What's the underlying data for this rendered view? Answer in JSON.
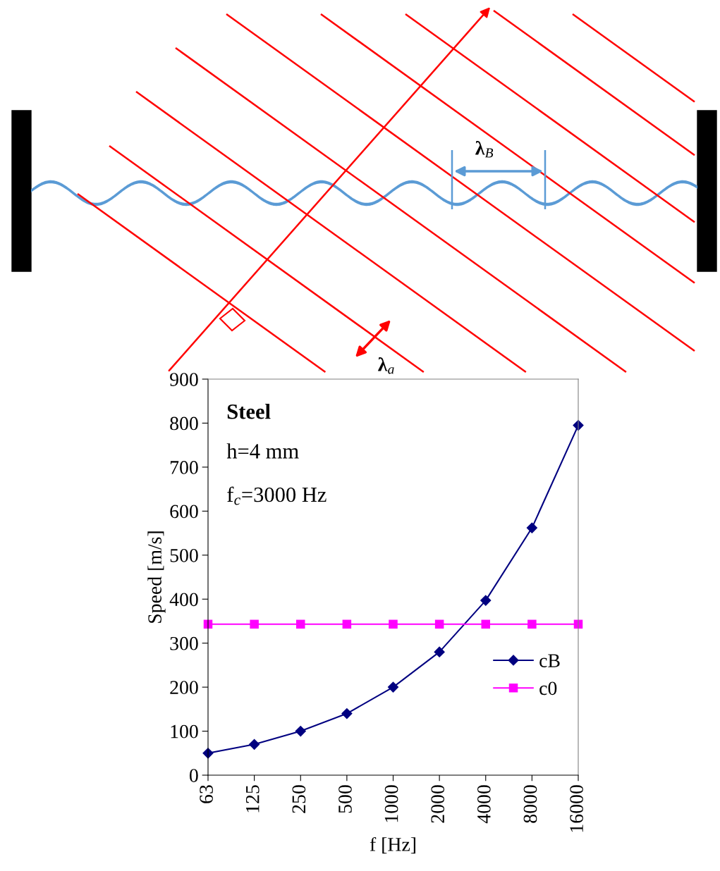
{
  "chart_data": {
    "type": "line",
    "xlabel": "f [Hz]",
    "ylabel": "Speed [m/s]",
    "categories": [
      "63",
      "125",
      "250",
      "500",
      "1000",
      "2000",
      "4000",
      "8000",
      "16000"
    ],
    "series": [
      {
        "name": "cB",
        "color": "#000080",
        "marker": "diamond",
        "values": [
          50,
          70,
          100,
          140,
          200,
          280,
          397,
          562,
          795
        ]
      },
      {
        "name": "c0",
        "color": "#ff00ff",
        "marker": "square",
        "values": [
          343,
          343,
          343,
          343,
          343,
          343,
          343,
          343,
          343
        ]
      }
    ],
    "ylim": [
      0,
      900
    ],
    "yticks": [
      0,
      100,
      200,
      300,
      400,
      500,
      600,
      700,
      800,
      900
    ],
    "grid": false,
    "legend": "right",
    "line_style": "solid",
    "annotations": [
      "Steel",
      "h=4 mm",
      "f$_{c}$=3000 Hz",
      "λ$_{B}$",
      "λ$_{a}$"
    ]
  }
}
